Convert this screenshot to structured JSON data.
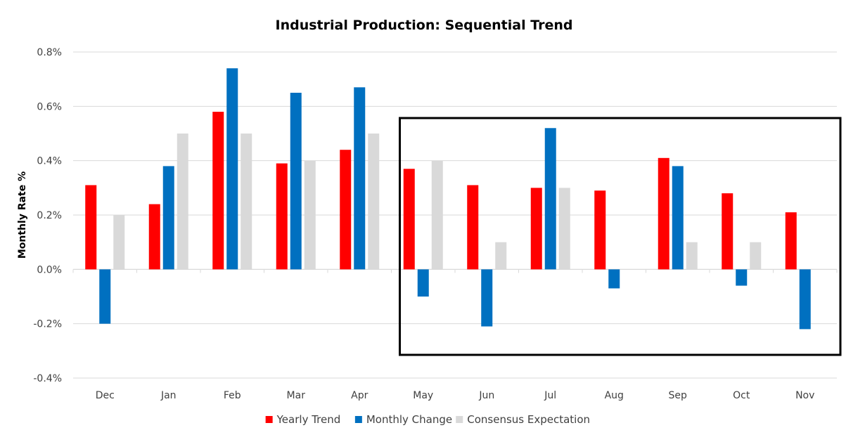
{
  "chart_data": {
    "type": "bar",
    "title": "Industrial Production: Sequential Trend",
    "xlabel": "",
    "ylabel": "Monthly Rate %",
    "ylim": [
      -0.4,
      0.8
    ],
    "yticks": [
      -0.4,
      -0.2,
      0.0,
      0.2,
      0.4,
      0.6,
      0.8
    ],
    "ytick_labels": [
      "-0.4%",
      "-0.2%",
      "0.0%",
      "0.2%",
      "0.4%",
      "0.6%",
      "0.8%"
    ],
    "grid": true,
    "legend_position": "bottom",
    "categories": [
      "Dec",
      "Jan",
      "Feb",
      "Mar",
      "Apr",
      "May",
      "Jun",
      "Jul",
      "Aug",
      "Sep",
      "Oct",
      "Nov"
    ],
    "series": [
      {
        "name": "Yearly Trend",
        "color": "#ff0000",
        "values": [
          0.31,
          0.24,
          0.58,
          0.39,
          0.44,
          0.37,
          0.31,
          0.3,
          0.29,
          0.41,
          0.28,
          0.21
        ]
      },
      {
        "name": "Monthly Change",
        "color": "#0070c0",
        "values": [
          -0.2,
          0.38,
          0.74,
          0.65,
          0.67,
          -0.1,
          -0.21,
          0.52,
          -0.07,
          0.38,
          -0.06,
          -0.22
        ]
      },
      {
        "name": "Consensus Expectation",
        "color": "#d9d9d9",
        "values": [
          0.2,
          0.5,
          0.5,
          0.4,
          0.5,
          0.4,
          0.1,
          0.3,
          null,
          0.1,
          0.1,
          null
        ]
      }
    ],
    "highlight": {
      "from_category": "May",
      "to_category": "Nov",
      "style": "black-outline-box"
    }
  }
}
